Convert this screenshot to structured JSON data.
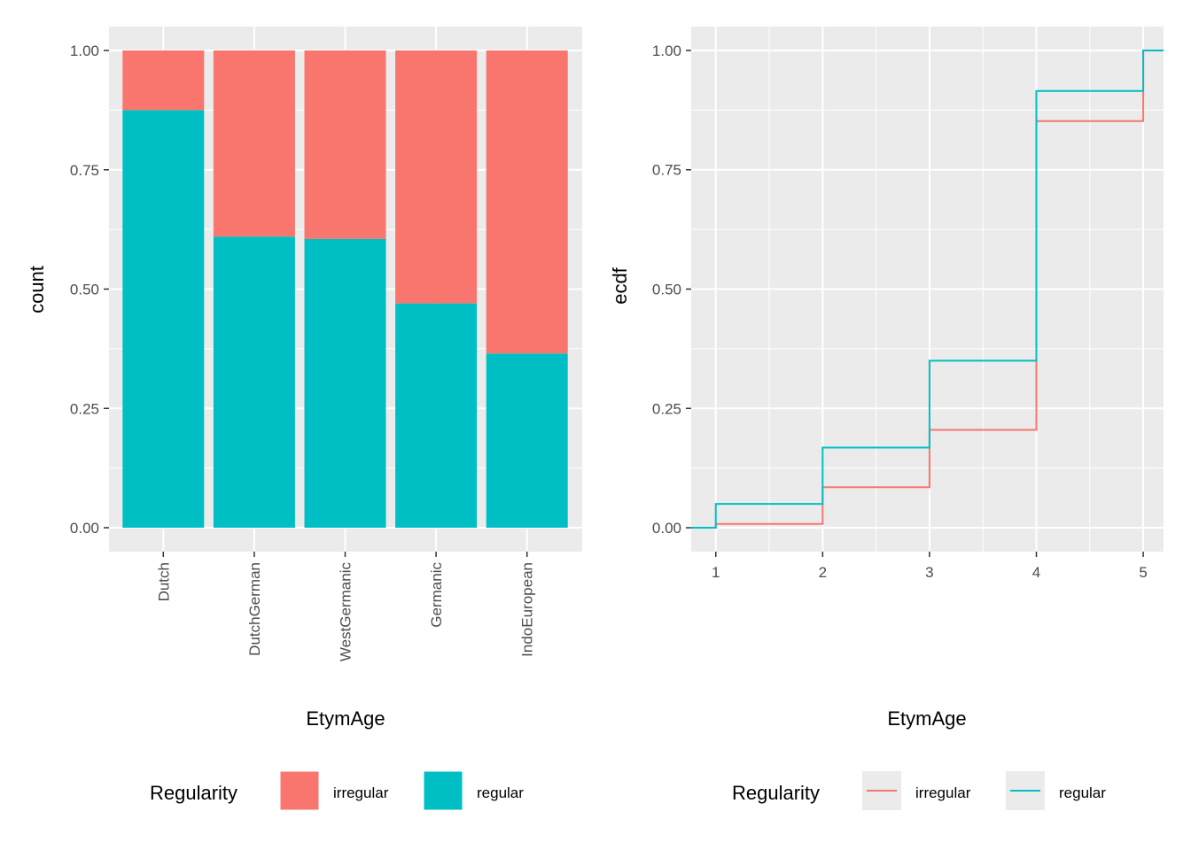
{
  "legend": {
    "title": "Regularity",
    "items": [
      "irregular",
      "regular"
    ]
  },
  "colors": {
    "irregular": "#F8766D",
    "regular": "#00BFC4",
    "panel": "#EBEBEB",
    "grid": "#FFFFFF",
    "tick_text": "#4D4D4D",
    "tick_mark": "#333333"
  },
  "chart_data": [
    {
      "type": "bar",
      "stacked": true,
      "position": "fill",
      "categories": [
        "Dutch",
        "DutchGerman",
        "WestGermanic",
        "Germanic",
        "IndoEuropean"
      ],
      "series": [
        {
          "name": "irregular",
          "values": [
            0.125,
            0.39,
            0.395,
            0.53,
            0.635
          ]
        },
        {
          "name": "regular",
          "values": [
            0.875,
            0.61,
            0.605,
            0.47,
            0.365
          ]
        }
      ],
      "xlabel": "EtymAge",
      "ylabel": "count",
      "ylim": [
        0,
        1
      ],
      "yticks": [
        "0.00",
        "0.25",
        "0.50",
        "0.75",
        "1.00"
      ],
      "grid": true,
      "legend_position": "bottom"
    },
    {
      "type": "line",
      "step": true,
      "series": [
        {
          "name": "irregular",
          "x": [
            1,
            2,
            3,
            4,
            5
          ],
          "y": [
            0.008,
            0.085,
            0.205,
            0.852,
            1.0
          ]
        },
        {
          "name": "regular",
          "x": [
            1,
            2,
            3,
            4,
            5
          ],
          "y": [
            0.05,
            0.168,
            0.35,
            0.915,
            1.0
          ]
        }
      ],
      "xlabel": "EtymAge",
      "ylabel": "ecdf",
      "xlim": [
        0.77,
        5.19
      ],
      "ylim": [
        -0.05,
        1.05
      ],
      "xticks": [
        "1",
        "2",
        "3",
        "4",
        "5"
      ],
      "yticks": [
        "0.00",
        "0.25",
        "0.50",
        "0.75",
        "1.00"
      ],
      "grid": true,
      "legend_position": "bottom"
    }
  ]
}
